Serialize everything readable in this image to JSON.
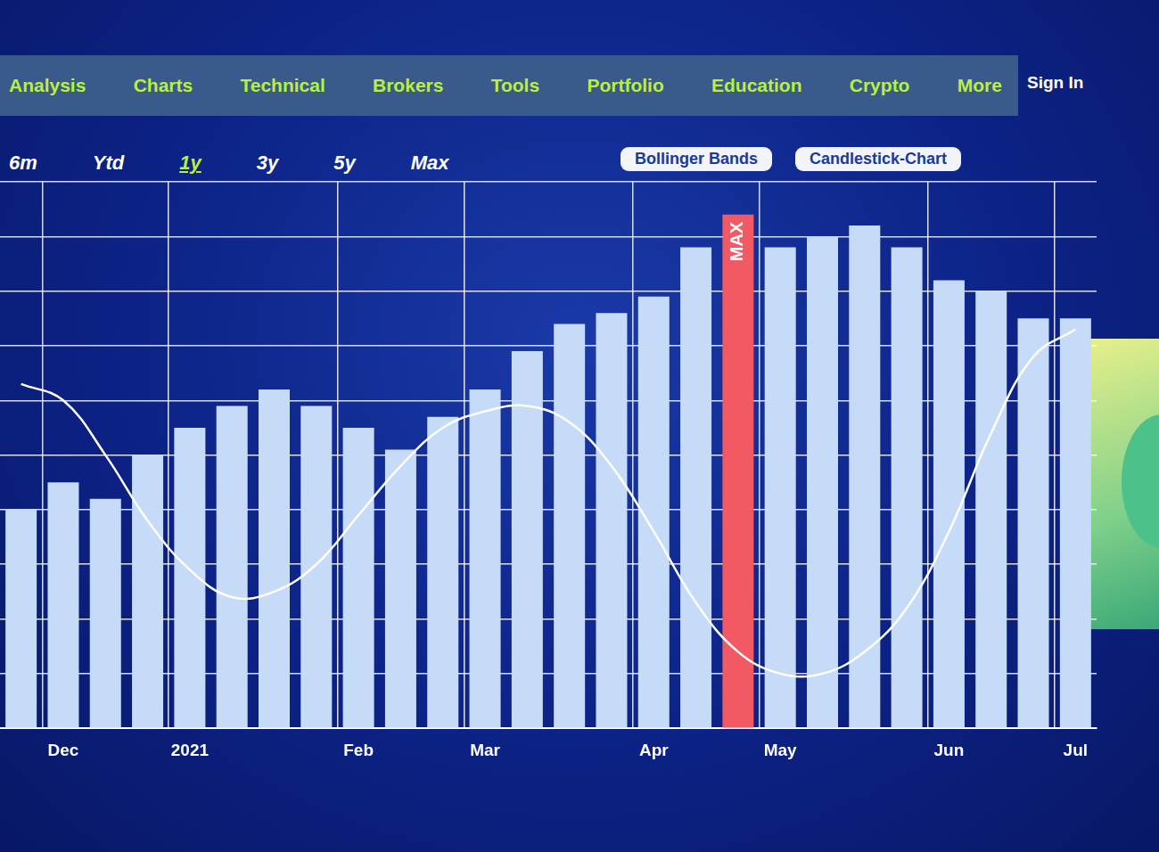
{
  "nav": {
    "items": [
      "Analysis",
      "Charts",
      "Technical",
      "Brokers",
      "Tools",
      "Portfolio",
      "Education",
      "Crypto",
      "More"
    ],
    "sign_in": "Sign In"
  },
  "range_buttons": {
    "items": [
      "6m",
      "Ytd",
      "1y",
      "3y",
      "5y",
      "Max"
    ],
    "active": "1y"
  },
  "tools": [
    "Bollinger Bands",
    "Candlestick-Chart"
  ],
  "chart_data": {
    "type": "bar",
    "annotation": "MAX",
    "categories": [
      null,
      "Dec",
      null,
      null,
      "2021",
      null,
      null,
      null,
      "Feb",
      null,
      null,
      "Mar",
      null,
      null,
      null,
      "Apr",
      null,
      null,
      "May",
      null,
      null,
      null,
      "Jun",
      null,
      null,
      "Jul"
    ],
    "series": [
      {
        "type": "bar",
        "colors": [
          "#c6dbf7",
          "#c6dbf7",
          "#c6dbf7",
          "#c6dbf7",
          "#c6dbf7",
          "#c6dbf7",
          "#c6dbf7",
          "#c6dbf7",
          "#c6dbf7",
          "#c6dbf7",
          "#c6dbf7",
          "#c6dbf7",
          "#c6dbf7",
          "#c6dbf7",
          "#c6dbf7",
          "#c6dbf7",
          "#c6dbf7",
          "#f25a63",
          "#c6dbf7",
          "#c6dbf7",
          "#c6dbf7",
          "#c6dbf7",
          "#c6dbf7",
          "#c6dbf7",
          "#c6dbf7",
          "#c6dbf7"
        ],
        "values": [
          40,
          45,
          42,
          50,
          55,
          59,
          62,
          59,
          55,
          51,
          57,
          62,
          69,
          74,
          76,
          79,
          88,
          94,
          88,
          90,
          92,
          88,
          82,
          80,
          75,
          75
        ]
      },
      {
        "type": "line",
        "color": "#ffffff",
        "line_style": "solid",
        "marker": "none",
        "values": [
          63,
          60,
          50,
          38,
          29,
          24,
          25,
          30,
          39,
          48,
          55,
          58,
          59,
          56,
          48,
          36,
          23,
          14,
          10,
          10,
          14,
          22,
          36,
          54,
          68,
          73
        ]
      }
    ],
    "ylim": [
      0,
      100
    ],
    "yticks": [
      0,
      10,
      20,
      30,
      40,
      50,
      60,
      70,
      80,
      90,
      100
    ],
    "grid": true,
    "tick_labels": "x"
  }
}
